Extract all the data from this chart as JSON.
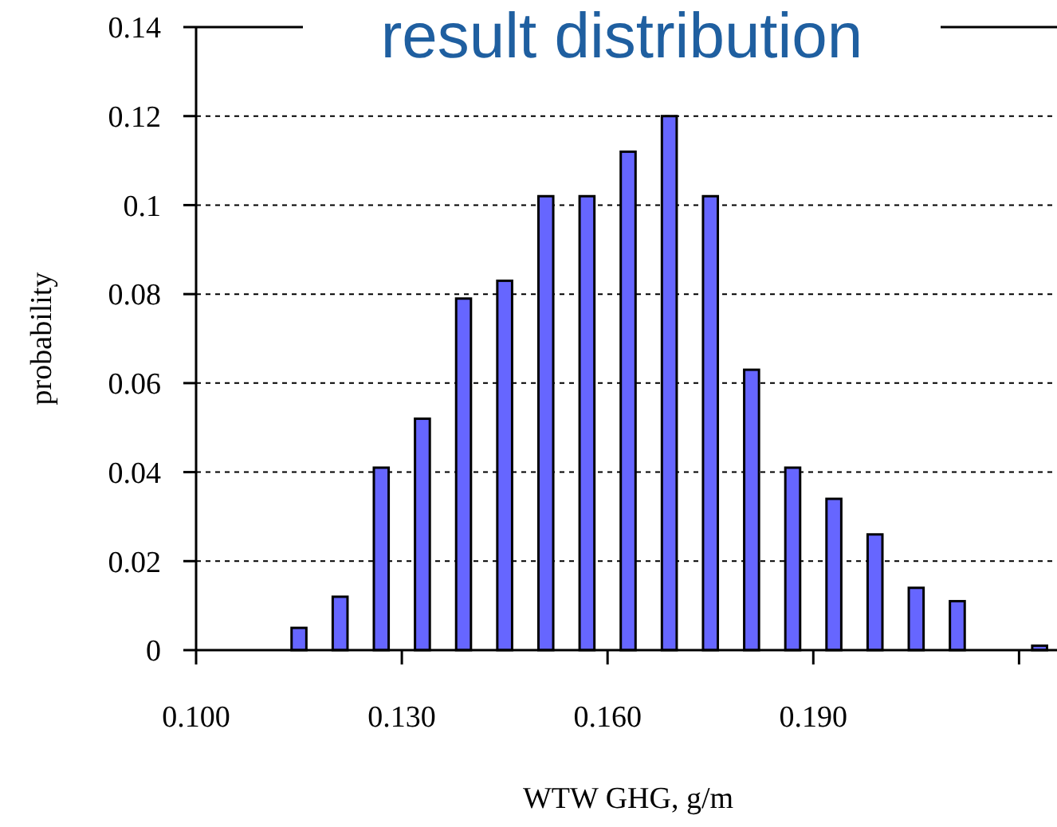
{
  "chart_data": {
    "type": "histogram",
    "title": "result distribution",
    "xlabel": "WTW GHG, g/m",
    "ylabel": "probability",
    "bins": [
      0.112,
      0.118,
      0.124,
      0.13,
      0.136,
      0.142,
      0.148,
      0.154,
      0.16,
      0.166,
      0.172,
      0.178,
      0.184,
      0.19,
      0.196,
      0.202,
      0.208,
      0.214,
      0.22,
      0.226
    ],
    "values": [
      0.005,
      0.012,
      0.041,
      0.052,
      0.079,
      0.083,
      0.102,
      0.102,
      0.112,
      0.12,
      0.102,
      0.063,
      0.041,
      0.034,
      0.026,
      0.014,
      0.011,
      0,
      0.001
    ],
    "color": "#6666ff",
    "xlim": [
      0.1,
      0.226
    ],
    "xticks": [
      {
        "value": 0.1,
        "label": "0.100"
      },
      {
        "value": 0.13,
        "label": "0.130"
      },
      {
        "value": 0.16,
        "label": "0.160"
      },
      {
        "value": 0.19,
        "label": "0.190"
      },
      {
        "value": 0.22,
        "label": null
      }
    ],
    "ylim": [
      0,
      0.14
    ],
    "yticks": [
      0,
      0.02,
      0.04,
      0.06,
      0.08,
      0.1,
      0.12,
      0.14
    ],
    "grid": "y",
    "line_style": "dotted"
  }
}
